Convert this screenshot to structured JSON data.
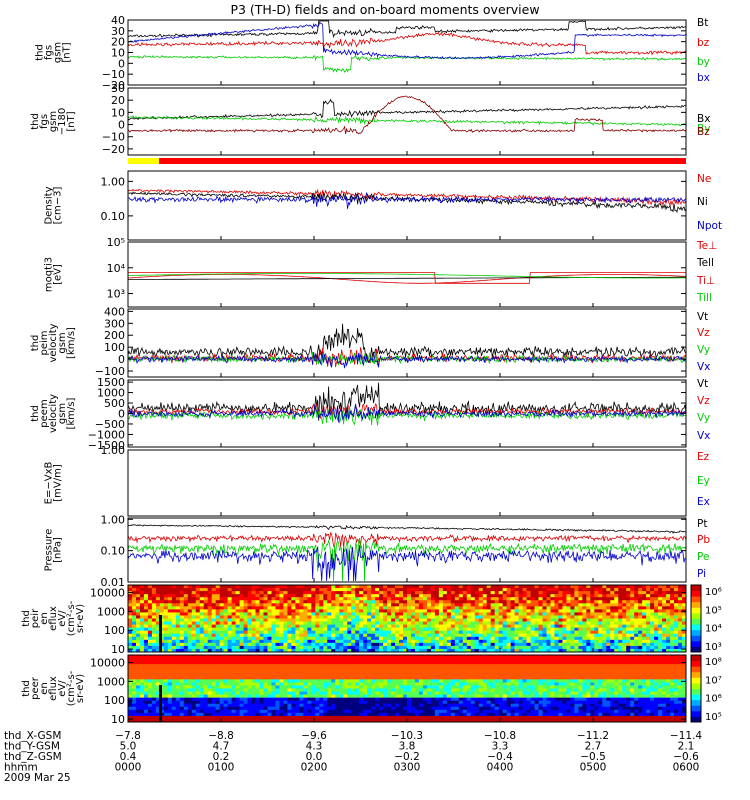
{
  "title": "P3 (TH-D) fields and on-board moments overview",
  "chart_data": {
    "type": "line",
    "panels": [
      {
        "ylabel": [
          "thd",
          "fgs",
          "gsm",
          "[nT]"
        ],
        "ticks": [
          {
            "v": 40,
            "t": "40"
          },
          {
            "v": 30,
            "t": "30"
          },
          {
            "v": 20,
            "t": "20"
          },
          {
            "v": 10,
            "t": "10"
          },
          {
            "v": 0,
            "t": "0"
          },
          {
            "v": -10,
            "t": "−10"
          },
          {
            "v": -20,
            "t": "−20"
          }
        ],
        "ylim": [
          -20,
          40
        ],
        "log": false,
        "series": [
          {
            "name": "Bt",
            "color": "#000000"
          },
          {
            "name": "bz",
            "color": "#dd0000"
          },
          {
            "name": "by",
            "color": "#00cc00"
          },
          {
            "name": "bx",
            "color": "#0000cc"
          }
        ]
      },
      {
        "ylabel": [
          "thd",
          "fgs",
          "gsm",
          "−180",
          "[nT]"
        ],
        "ticks": [
          {
            "v": 30,
            "t": "30"
          },
          {
            "v": 20,
            "t": "20"
          },
          {
            "v": 10,
            "t": "10"
          },
          {
            "v": 0,
            "t": "0"
          },
          {
            "v": -10,
            "t": "−10"
          },
          {
            "v": -20,
            "t": "−20"
          }
        ],
        "ylim": [
          -25,
          30
        ],
        "log": false,
        "series": [
          {
            "name": "Bx",
            "color": "#000000"
          },
          {
            "name": "By",
            "color": "#00cc00"
          },
          {
            "name": "Bz",
            "color": "#880000"
          }
        ]
      },
      {
        "ylabel": [
          "Density",
          "[cm−3]"
        ],
        "ticks": [
          {
            "v": 1,
            "t": "1.00"
          },
          {
            "v": 0.1,
            "t": "0.10"
          }
        ],
        "ylim": [
          0.02,
          2
        ],
        "log": true,
        "series": [
          {
            "name": "Ne",
            "color": "#dd0000"
          },
          {
            "name": "Ni",
            "color": "#000000"
          },
          {
            "name": "Npot",
            "color": "#0000cc"
          }
        ]
      },
      {
        "ylabel": [
          "moqti3",
          "[eV]"
        ],
        "ticks": [
          {
            "v": 100000,
            "t": "10⁵"
          },
          {
            "v": 10000,
            "t": "10⁴"
          },
          {
            "v": 1000,
            "t": "10³"
          }
        ],
        "ylim": [
          300,
          100000
        ],
        "log": true,
        "series": [
          {
            "name": "Te⊥",
            "color": "#dd0000"
          },
          {
            "name": "Tell",
            "color": "#000000"
          },
          {
            "name": "Ti⊥",
            "color": "#dd0000"
          },
          {
            "name": "Till",
            "color": "#00cc00"
          }
        ]
      },
      {
        "ylabel": [
          "thd",
          "peim",
          "velocity",
          "gsm",
          "[km/s]"
        ],
        "ticks": [
          {
            "v": 400,
            "t": "400"
          },
          {
            "v": 300,
            "t": "300"
          },
          {
            "v": 200,
            "t": "200"
          },
          {
            "v": 100,
            "t": "100"
          },
          {
            "v": 0,
            "t": "0"
          },
          {
            "v": -100,
            "t": "−100"
          }
        ],
        "ylim": [
          -150,
          420
        ],
        "log": false,
        "series": [
          {
            "name": "Vt",
            "color": "#000000"
          },
          {
            "name": "Vz",
            "color": "#dd0000"
          },
          {
            "name": "Vy",
            "color": "#00cc00"
          },
          {
            "name": "Vx",
            "color": "#0000cc"
          }
        ]
      },
      {
        "ylabel": [
          "thd",
          "peem",
          "velocity",
          "gsm",
          "[km/s]"
        ],
        "ticks": [
          {
            "v": 1500,
            "t": "1500"
          },
          {
            "v": 1000,
            "t": "1000"
          },
          {
            "v": 500,
            "t": "500"
          },
          {
            "v": 0,
            "t": "0"
          },
          {
            "v": -500,
            "t": "−500"
          },
          {
            "v": -1000,
            "t": "−1000"
          },
          {
            "v": -1500,
            "t": "−1500"
          }
        ],
        "ylim": [
          -1600,
          1600
        ],
        "log": false,
        "series": [
          {
            "name": "Vt",
            "color": "#000000"
          },
          {
            "name": "Vz",
            "color": "#dd0000"
          },
          {
            "name": "Vy",
            "color": "#00cc00"
          },
          {
            "name": "Vx",
            "color": "#0000cc"
          }
        ]
      },
      {
        "ylabel": [
          "E=−VxB",
          "[mV/m]"
        ],
        "ticks": [
          {
            "v": 1,
            "t": "1.00"
          }
        ],
        "ylim": [
          0,
          1
        ],
        "log": false,
        "series": [
          {
            "name": "Ez",
            "color": "#dd0000"
          },
          {
            "name": "Ey",
            "color": "#00cc00"
          },
          {
            "name": "Ex",
            "color": "#0000cc"
          }
        ]
      },
      {
        "ylabel": [
          "Pressure",
          "[nPa]"
        ],
        "ticks": [
          {
            "v": 1,
            "t": "1.00"
          },
          {
            "v": 0.1,
            "t": "0.10"
          },
          {
            "v": 0.01,
            "t": "0.01"
          }
        ],
        "ylim": [
          0.01,
          1.1
        ],
        "log": true,
        "series": [
          {
            "name": "Pt",
            "color": "#000000"
          },
          {
            "name": "Pb",
            "color": "#dd0000"
          },
          {
            "name": "Pe",
            "color": "#00cc00"
          },
          {
            "name": "Pi",
            "color": "#0000cc"
          }
        ]
      },
      {
        "ylabel": [
          "thd",
          "peir",
          "en",
          "eflux",
          "eV/",
          "(cm²-s-",
          "sr-eV)"
        ],
        "ticks": [
          {
            "v": 10000,
            "t": "10000"
          },
          {
            "v": 1000,
            "t": "1000"
          },
          {
            "v": 100,
            "t": "100"
          },
          {
            "v": 10,
            "t": "10"
          }
        ],
        "ylim": [
          7,
          25000
        ],
        "log": true,
        "colorbar_ticks": [
          "10⁶",
          "10⁵",
          "10⁴",
          "10³"
        ]
      },
      {
        "ylabel": [
          "thd",
          "peer",
          "en",
          "eflux",
          "eV/",
          "(cm²-s-",
          "sr-eV)"
        ],
        "ticks": [
          {
            "v": 10000,
            "t": "10000"
          },
          {
            "v": 1000,
            "t": "1000"
          },
          {
            "v": 100,
            "t": "100"
          },
          {
            "v": 10,
            "t": "10"
          }
        ],
        "ylim": [
          7,
          25000
        ],
        "log": true,
        "colorbar_ticks": [
          "10⁸",
          "10⁷",
          "10⁶",
          "10⁵"
        ]
      }
    ],
    "time_axis": {
      "rows": [
        {
          "label": "thd_X-GSM",
          "values": [
            "−7.8",
            "−8.8",
            "−9.6",
            "−10.3",
            "−10.8",
            "−11.2",
            "−11.4"
          ]
        },
        {
          "label": "thd_Y-GSM",
          "values": [
            "5.0",
            "4.7",
            "4.3",
            "3.8",
            "3.3",
            "2.7",
            "2.1"
          ]
        },
        {
          "label": "thd_Z-GSM",
          "values": [
            "0.4",
            "0.2",
            "0.0",
            "−0.2",
            "−0.4",
            "−0.5",
            "−0.6"
          ]
        },
        {
          "label": "hhmm",
          "values": [
            "0000",
            "0100",
            "0200",
            "0300",
            "0400",
            "0500",
            "0600"
          ]
        }
      ],
      "date": "2009 Mar 25"
    }
  }
}
